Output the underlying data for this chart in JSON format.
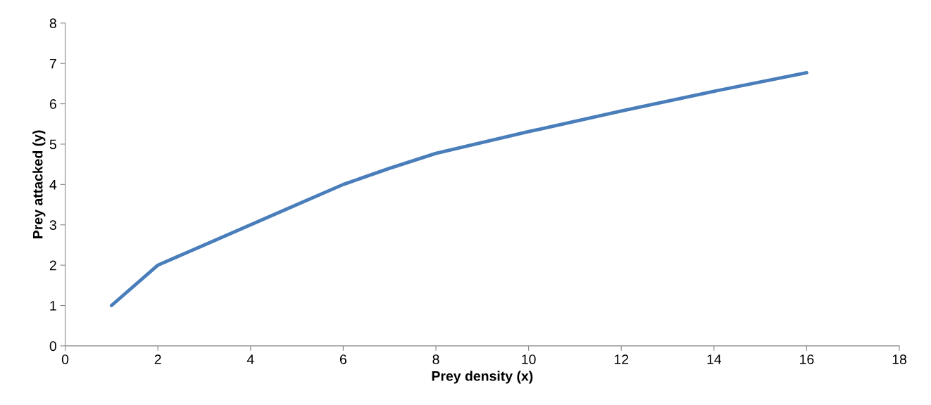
{
  "chart_data": {
    "type": "line",
    "xlabel": "Prey density (x)",
    "ylabel": "Prey attacked (y)",
    "x": [
      1,
      2,
      3,
      4,
      5,
      6,
      7,
      8,
      10,
      12,
      14,
      16
    ],
    "series": [
      {
        "color": "#4a7ebb",
        "values": [
          1,
          2,
          2.5,
          3,
          3.5,
          4,
          4.4,
          4.77,
          5.31,
          5.82,
          6.31,
          6.77
        ]
      }
    ],
    "xlim": [
      0,
      18
    ],
    "xticks": [
      0,
      2,
      4,
      6,
      8,
      10,
      12,
      14,
      16,
      18
    ],
    "ylim": [
      0,
      8
    ],
    "yticks": [
      0,
      1,
      2,
      3,
      4,
      5,
      6,
      7,
      8
    ],
    "grid": false,
    "legend": false,
    "marker": "none",
    "line_style": "solid"
  }
}
